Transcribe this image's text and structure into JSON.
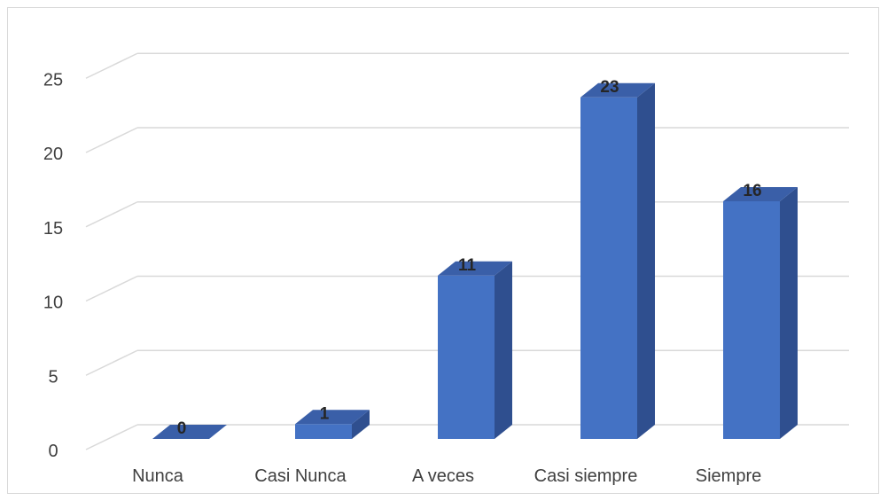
{
  "chart_data": {
    "type": "bar",
    "style": "3d-column",
    "title": "",
    "xlabel": "",
    "ylabel": "",
    "categories": [
      "Nunca",
      "Casi Nunca",
      "A veces",
      "Casi siempre",
      "Siempre"
    ],
    "values": [
      0,
      1,
      11,
      23,
      16
    ],
    "y_ticks": [
      "0",
      "5",
      "10",
      "15",
      "20",
      "25"
    ],
    "data_labels": [
      "0",
      "1",
      "11",
      "23",
      "16"
    ],
    "ylim": [
      0,
      25
    ],
    "grid": true,
    "legend": "none",
    "colors": {
      "bar_front": "#4472c4",
      "bar_side": "#2f4f8f",
      "bar_top": "#3a5fa8",
      "gridline": "#d9d9d9"
    }
  }
}
